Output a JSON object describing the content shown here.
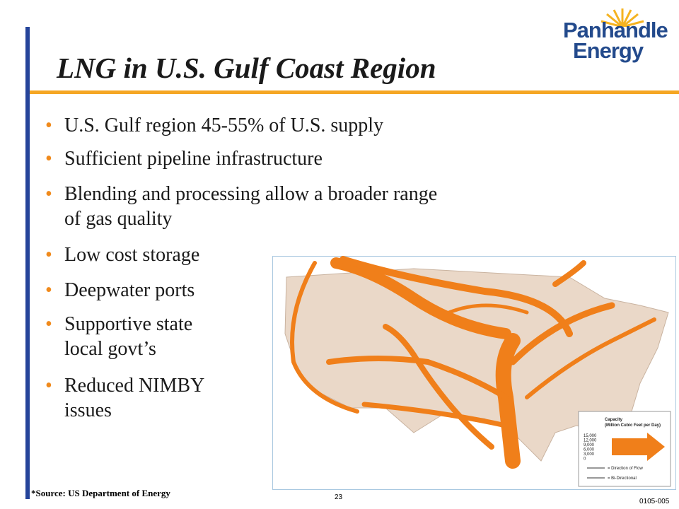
{
  "header": {
    "title": "LNG in U.S. Gulf Coast Region",
    "logo": [
      "Panhandle",
      "Energy"
    ]
  },
  "bullets": [
    [
      "U.S. Gulf region 45-55% of U.S. supply"
    ],
    [
      "Sufficient pipeline infrastructure"
    ],
    [
      "Blending and processing allow a broader range",
      "of gas quality"
    ],
    [
      "Low cost storage"
    ],
    [
      "Deepwater ports"
    ],
    [
      "Supportive state",
      "local govt’s"
    ],
    [
      "Reduced NIMBY",
      "issues"
    ]
  ],
  "map_legend": {
    "title": [
      "Capacity",
      "(Million Cubic Feet per Day)"
    ],
    "levels": [
      "15,000",
      "12,000",
      "9,000",
      "6,000",
      "3,000",
      "0"
    ],
    "flow": "= Direction of Flow",
    "bidirectional": "= Bi-Directional"
  },
  "footer": {
    "source": "*Source: US Department of Energy",
    "page": "23",
    "code": "0105-005"
  }
}
